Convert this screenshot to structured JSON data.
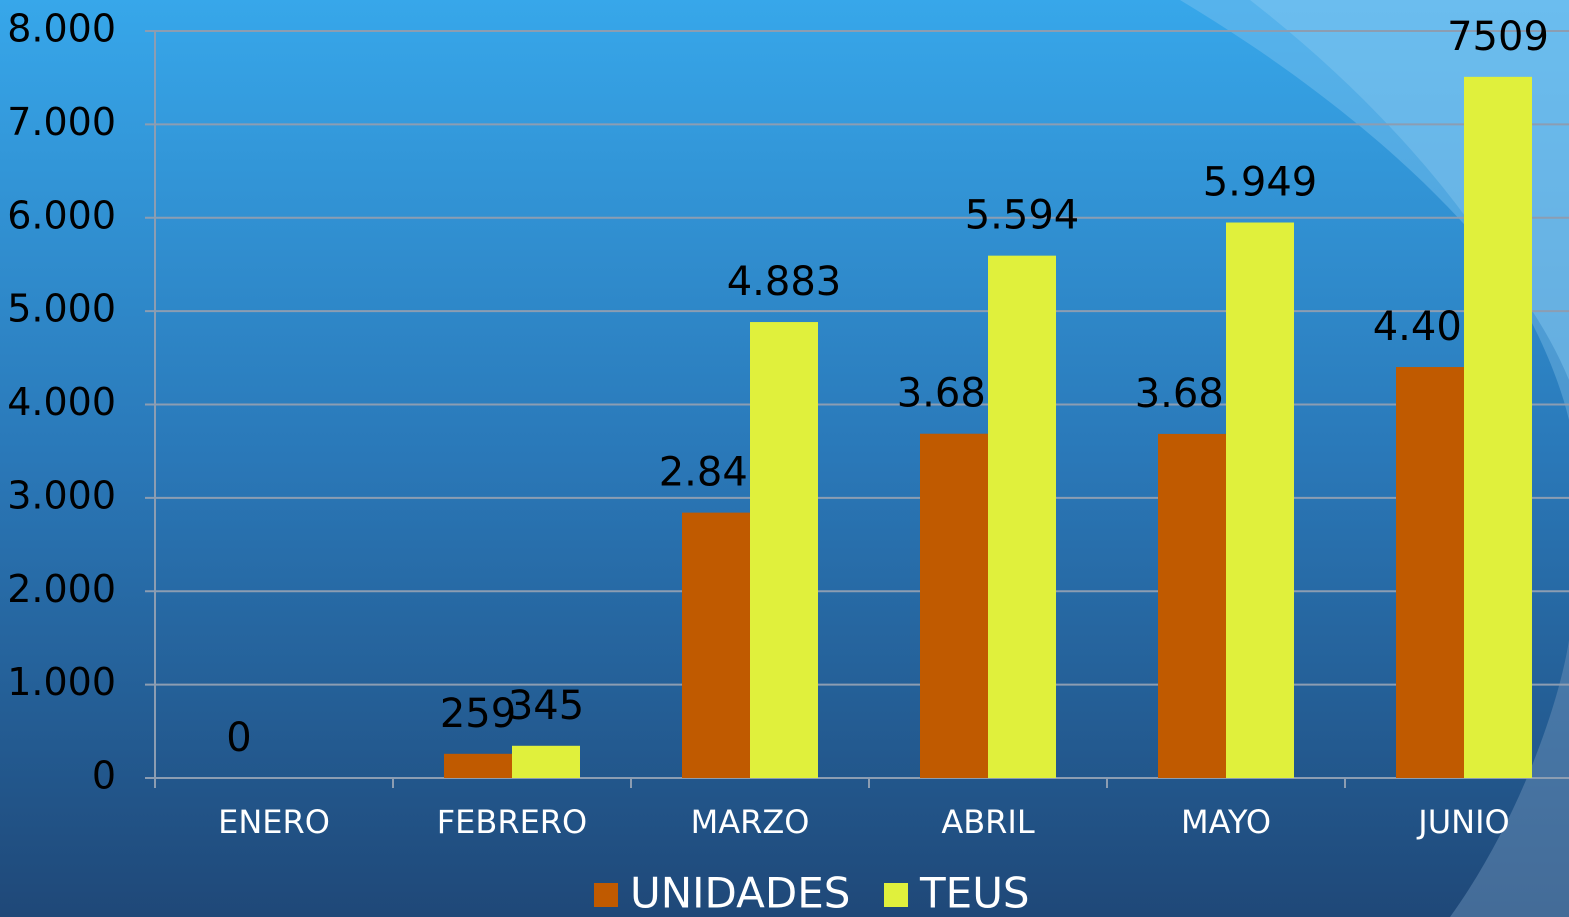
{
  "chart_data": {
    "type": "bar",
    "categories": [
      "ENERO",
      "FEBRERO",
      "MARZO",
      "ABRIL",
      "MAYO",
      "JUNIO"
    ],
    "series": [
      {
        "name": "UNIDADES",
        "color": "#c05a00",
        "values": [
          0,
          259,
          2842,
          3687,
          3685,
          4401
        ],
        "value_labels": [
          "0",
          "259",
          "2.842",
          "3.687",
          "3.685",
          "4.401"
        ]
      },
      {
        "name": "TEUS",
        "color": "#e0f03c",
        "values": [
          null,
          345,
          4883,
          5594,
          5949,
          7509
        ],
        "value_labels": [
          null,
          "345",
          "4.883",
          "5.594",
          "5.949",
          "7509"
        ]
      }
    ],
    "ylim": [
      0,
      8000
    ],
    "yticks": [
      0,
      {
        "value": 1000,
        "label": "1.000"
      },
      {
        "value": 2000,
        "label": "2.000"
      },
      {
        "value": 3000,
        "label": "3.000"
      },
      {
        "value": 4000,
        "label": "4.000"
      },
      {
        "value": 5000,
        "label": "5.000"
      },
      {
        "value": 6000,
        "label": "6.000"
      },
      {
        "value": 7000,
        "label": "7.000"
      },
      {
        "value": 8000,
        "label": "8.000"
      }
    ],
    "grid": true,
    "legend": "bottom"
  }
}
